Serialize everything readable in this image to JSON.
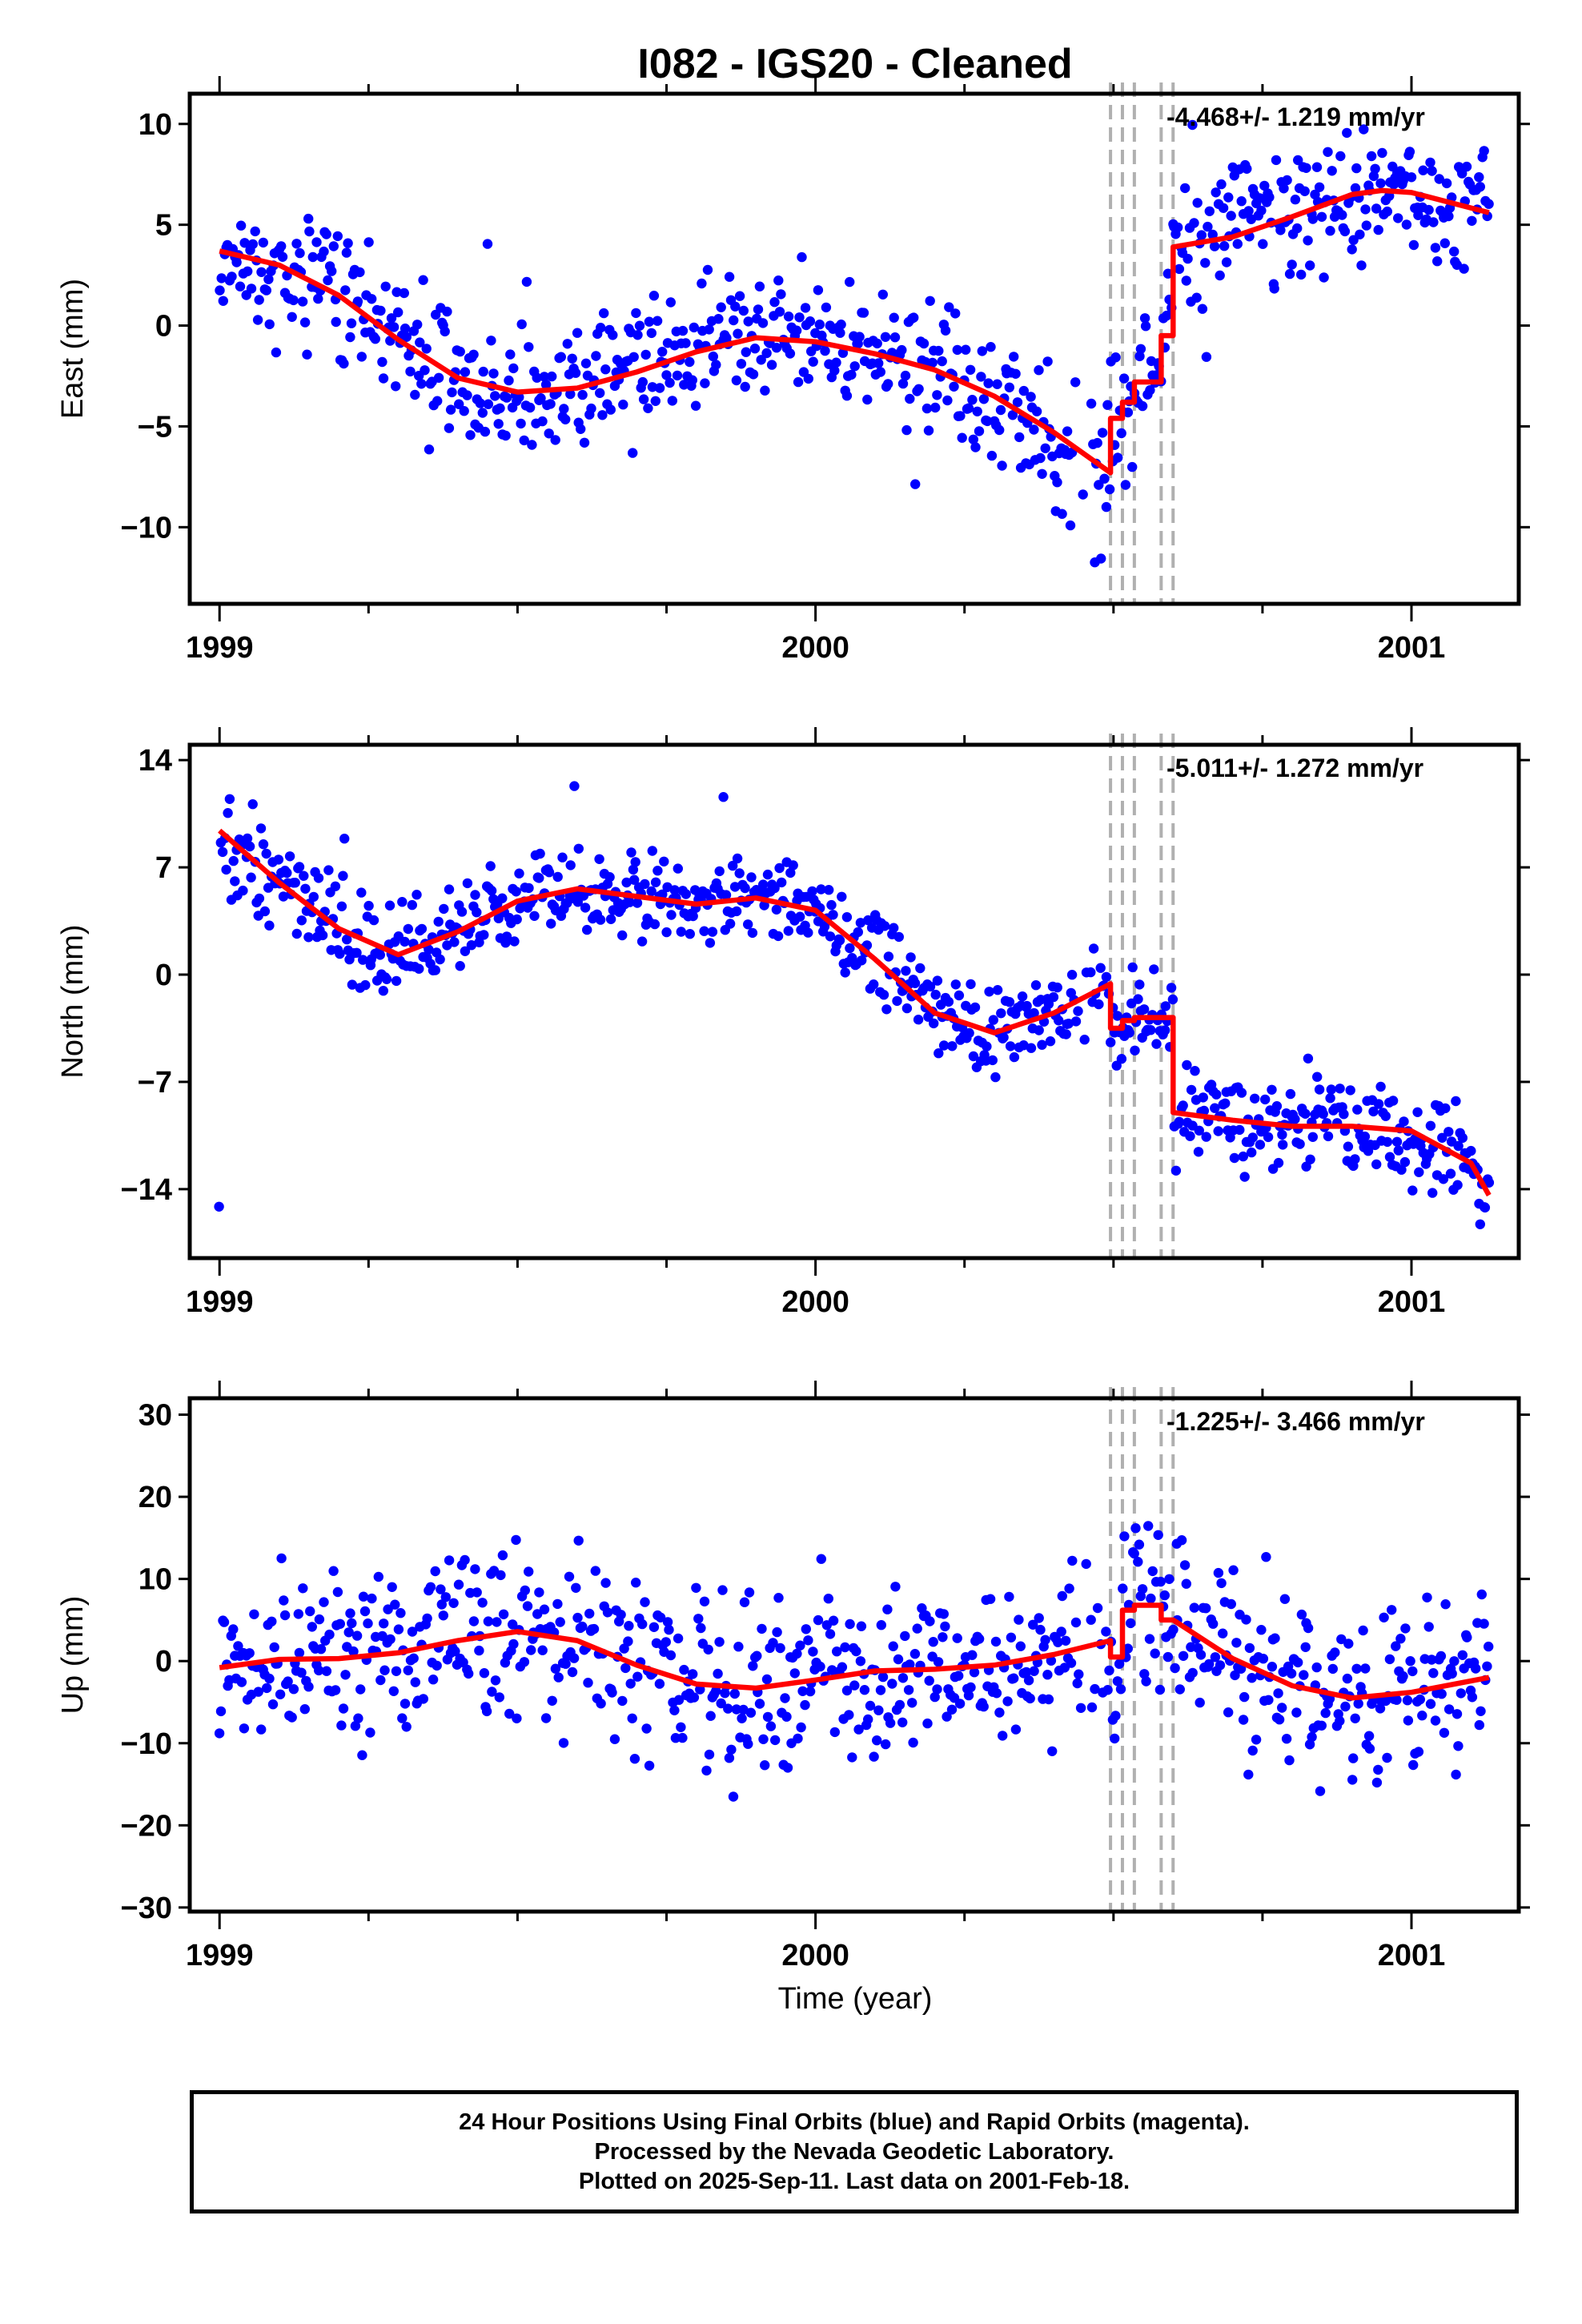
{
  "title": "I082  - IGS20 - Cleaned",
  "xlabel": "Time (year)",
  "footer": {
    "line1": "24 Hour Positions Using Final Orbits (blue) and Rapid Orbits (magenta).",
    "line2": "Processed by the Nevada Geodetic Laboratory.",
    "line3": "Plotted on 2025-Sep-11. Last data on 2001-Feb-18."
  },
  "colors": {
    "points": "#0000ff",
    "model": "#ff0000",
    "breaks": "#b0b0b0",
    "frame": "#000000"
  },
  "chart_data": [
    {
      "type": "scatter",
      "ylabel": "East (mm)",
      "rate_label": "-4.468+/- 1.219 mm/yr",
      "xlim": [
        1998.95,
        2001.18
      ],
      "ylim": [
        -13.8,
        11.5
      ],
      "yticks": [
        -10,
        -5,
        0,
        5,
        10
      ],
      "ytick_labels": [
        "−10",
        "−5",
        "0",
        "5",
        "10"
      ],
      "xticks": [
        1999,
        2000,
        2001
      ],
      "xtick_labels": [
        "1999",
        "2000",
        "2001"
      ],
      "minor_xticks": [
        1999.25,
        1999.5,
        1999.75,
        2000.25,
        2000.5,
        2000.75
      ],
      "breaks": [
        2000.495,
        2000.515,
        2000.535,
        2000.58,
        2000.6
      ],
      "model": [
        [
          1999.0,
          3.7
        ],
        [
          1999.1,
          3.0
        ],
        [
          1999.2,
          1.5
        ],
        [
          1999.3,
          -0.7
        ],
        [
          1999.4,
          -2.6
        ],
        [
          1999.5,
          -3.3
        ],
        [
          1999.6,
          -3.1
        ],
        [
          1999.7,
          -2.3
        ],
        [
          1999.8,
          -1.3
        ],
        [
          1999.9,
          -0.6
        ],
        [
          2000.0,
          -0.8
        ],
        [
          2000.1,
          -1.4
        ],
        [
          2000.2,
          -2.2
        ],
        [
          2000.3,
          -3.5
        ],
        [
          2000.4,
          -5.3
        ],
        [
          2000.495,
          -7.3
        ],
        [
          2000.495,
          -4.6
        ],
        [
          2000.515,
          -4.6
        ],
        [
          2000.515,
          -3.8
        ],
        [
          2000.535,
          -3.8
        ],
        [
          2000.535,
          -2.8
        ],
        [
          2000.58,
          -2.8
        ],
        [
          2000.58,
          -0.5
        ],
        [
          2000.6,
          -0.5
        ],
        [
          2000.6,
          3.9
        ],
        [
          2000.7,
          4.4
        ],
        [
          2000.8,
          5.4
        ],
        [
          2000.9,
          6.5
        ],
        [
          2000.95,
          6.7
        ],
        [
          2001.0,
          6.6
        ],
        [
          2001.13,
          5.6
        ]
      ],
      "points": {
        "amp": [
          3.7,
          3.0,
          2.2,
          2.3,
          2.8,
          4.0
        ],
        "noise": 2.0
      }
    },
    {
      "type": "scatter",
      "ylabel": "North (mm)",
      "rate_label": "-5.011+/- 1.272 mm/yr",
      "xlim": [
        1998.95,
        2001.18
      ],
      "ylim": [
        -18.5,
        15.0
      ],
      "yticks": [
        -14,
        -7,
        0,
        7,
        14
      ],
      "ytick_labels": [
        "−14",
        "−7",
        "0",
        "7",
        "14"
      ],
      "xticks": [
        1999,
        2000,
        2001
      ],
      "xtick_labels": [
        "1999",
        "2000",
        "2001"
      ],
      "minor_xticks": [
        1999.25,
        1999.5,
        1999.75,
        2000.25,
        2000.5,
        2000.75
      ],
      "breaks": [
        2000.495,
        2000.515,
        2000.535,
        2000.58,
        2000.6
      ],
      "model": [
        [
          1999.0,
          9.4
        ],
        [
          1999.1,
          6.0
        ],
        [
          1999.2,
          3.0
        ],
        [
          1999.3,
          1.3
        ],
        [
          1999.4,
          2.8
        ],
        [
          1999.5,
          4.8
        ],
        [
          1999.6,
          5.6
        ],
        [
          1999.7,
          5.1
        ],
        [
          1999.8,
          4.6
        ],
        [
          1999.9,
          5.0
        ],
        [
          2000.0,
          4.2
        ],
        [
          2000.1,
          1.0
        ],
        [
          2000.2,
          -2.5
        ],
        [
          2000.3,
          -3.8
        ],
        [
          2000.4,
          -2.5
        ],
        [
          2000.495,
          -0.6
        ],
        [
          2000.495,
          -3.5
        ],
        [
          2000.515,
          -3.5
        ],
        [
          2000.515,
          -3.0
        ],
        [
          2000.535,
          -3.0
        ],
        [
          2000.535,
          -2.8
        ],
        [
          2000.6,
          -2.8
        ],
        [
          2000.6,
          -9.0
        ],
        [
          2000.7,
          -9.5
        ],
        [
          2000.8,
          -9.9
        ],
        [
          2000.9,
          -9.9
        ],
        [
          2001.0,
          -10.2
        ],
        [
          2001.1,
          -12.3
        ],
        [
          2001.13,
          -14.4
        ]
      ],
      "points": {
        "amp": [
          4.5,
          3.7,
          3.0,
          3.0,
          3.0,
          4.0
        ],
        "noise": 1.7
      }
    },
    {
      "type": "scatter",
      "ylabel": "Up (mm)",
      "rate_label": "-1.225+/- 3.466 mm/yr",
      "xlim": [
        1998.95,
        2001.18
      ],
      "ylim": [
        -30.5,
        32.0
      ],
      "yticks": [
        -30,
        -20,
        -10,
        0,
        10,
        20,
        30
      ],
      "ytick_labels": [
        "−30",
        "−20",
        "−10",
        "0",
        "10",
        "20",
        "30"
      ],
      "xticks": [
        1999,
        2000,
        2001
      ],
      "xtick_labels": [
        "1999",
        "2000",
        "2001"
      ],
      "minor_xticks": [
        1999.25,
        1999.5,
        1999.75,
        2000.25,
        2000.5,
        2000.75
      ],
      "breaks": [
        2000.495,
        2000.515,
        2000.535,
        2000.58,
        2000.6
      ],
      "model": [
        [
          1999.0,
          -0.8
        ],
        [
          1999.1,
          0.2
        ],
        [
          1999.2,
          0.3
        ],
        [
          1999.3,
          1.0
        ],
        [
          1999.4,
          2.5
        ],
        [
          1999.5,
          3.6
        ],
        [
          1999.6,
          2.5
        ],
        [
          1999.7,
          -0.5
        ],
        [
          1999.8,
          -2.8
        ],
        [
          1999.9,
          -3.3
        ],
        [
          2000.0,
          -2.3
        ],
        [
          2000.1,
          -1.2
        ],
        [
          2000.2,
          -1.0
        ],
        [
          2000.3,
          -0.5
        ],
        [
          2000.4,
          0.8
        ],
        [
          2000.495,
          2.5
        ],
        [
          2000.495,
          0.5
        ],
        [
          2000.515,
          0.5
        ],
        [
          2000.515,
          6.2
        ],
        [
          2000.535,
          6.2
        ],
        [
          2000.535,
          6.8
        ],
        [
          2000.58,
          6.8
        ],
        [
          2000.58,
          5.0
        ],
        [
          2000.6,
          5.0
        ],
        [
          2000.7,
          0.3
        ],
        [
          2000.8,
          -3.0
        ],
        [
          2000.9,
          -4.5
        ],
        [
          2001.0,
          -3.8
        ],
        [
          2001.13,
          -2.0
        ]
      ],
      "points": {
        "amp": [
          6.5,
          6.5,
          6.5,
          6.5,
          7.0,
          6.5
        ],
        "noise": 6.0
      }
    }
  ]
}
